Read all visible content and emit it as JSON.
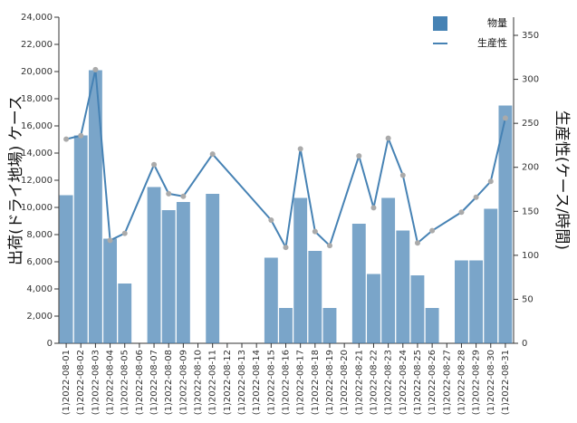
{
  "chart_data": {
    "type": "bar+line",
    "y_label": "出荷(ドライ地場) ケース",
    "y2_label": "生産性(ケース/時間)",
    "categories": [
      "(1)2022-08-01",
      "(1)2022-08-02",
      "(1)2022-08-03",
      "(1)2022-08-04",
      "(1)2022-08-05",
      "(1)2022-08-06",
      "(1)2022-08-07",
      "(1)2022-08-08",
      "(1)2022-08-09",
      "(1)2022-08-10",
      "(1)2022-08-11",
      "(1)2022-08-12",
      "(1)2022-08-13",
      "(1)2022-08-14",
      "(1)2022-08-15",
      "(1)2022-08-16",
      "(1)2022-08-17",
      "(1)2022-08-18",
      "(1)2022-08-19",
      "(1)2022-08-20",
      "(1)2022-08-21",
      "(1)2022-08-22",
      "(1)2022-08-23",
      "(1)2022-08-24",
      "(1)2022-08-25",
      "(1)2022-08-26",
      "(1)2022-08-27",
      "(1)2022-08-28",
      "(1)2022-08-29",
      "(1)2022-08-30",
      "(1)2022-08-31"
    ],
    "series": [
      {
        "name": "物量",
        "type": "bar",
        "color": "#4682b4",
        "values": [
          10900,
          15300,
          20100,
          7700,
          4400,
          null,
          11500,
          9800,
          10400,
          null,
          11000,
          null,
          null,
          null,
          6300,
          2600,
          10700,
          6800,
          2600,
          null,
          8800,
          5100,
          10700,
          8300,
          5000,
          2600,
          null,
          6100,
          6100,
          9900,
          17500
        ]
      },
      {
        "name": "生産性",
        "type": "line",
        "axis": "y2",
        "color": "#4682b4",
        "marker_color": "#aaaaaa",
        "values": [
          232,
          236,
          311,
          117,
          125,
          null,
          203,
          170,
          167,
          null,
          215,
          null,
          null,
          null,
          140,
          109,
          221,
          127,
          111,
          null,
          213,
          154,
          233,
          191,
          114,
          128,
          null,
          149,
          166,
          184,
          256
        ]
      }
    ],
    "ylim": [
      0,
      24000
    ],
    "yticks": [
      0,
      {
        "value": 2000,
        "label": "2,000"
      },
      {
        "value": 4000,
        "label": "4,000"
      },
      {
        "value": 6000,
        "label": "6,000"
      },
      {
        "value": 8000,
        "label": "8,000"
      },
      {
        "value": 10000,
        "label": "10,000"
      },
      {
        "value": 12000,
        "label": "12,000"
      },
      {
        "value": 14000,
        "label": "14,000"
      },
      {
        "value": 16000,
        "label": "16,000"
      },
      {
        "value": 18000,
        "label": "18,000"
      },
      {
        "value": 20000,
        "label": "20,000"
      },
      {
        "value": 22000,
        "label": "22,000"
      },
      {
        "value": 24000,
        "label": "24,000"
      }
    ],
    "y2lim": [
      0,
      370.6
    ],
    "y2ticks": [
      0,
      50,
      100,
      150,
      200,
      250,
      300,
      350
    ],
    "legend": "top-right"
  }
}
